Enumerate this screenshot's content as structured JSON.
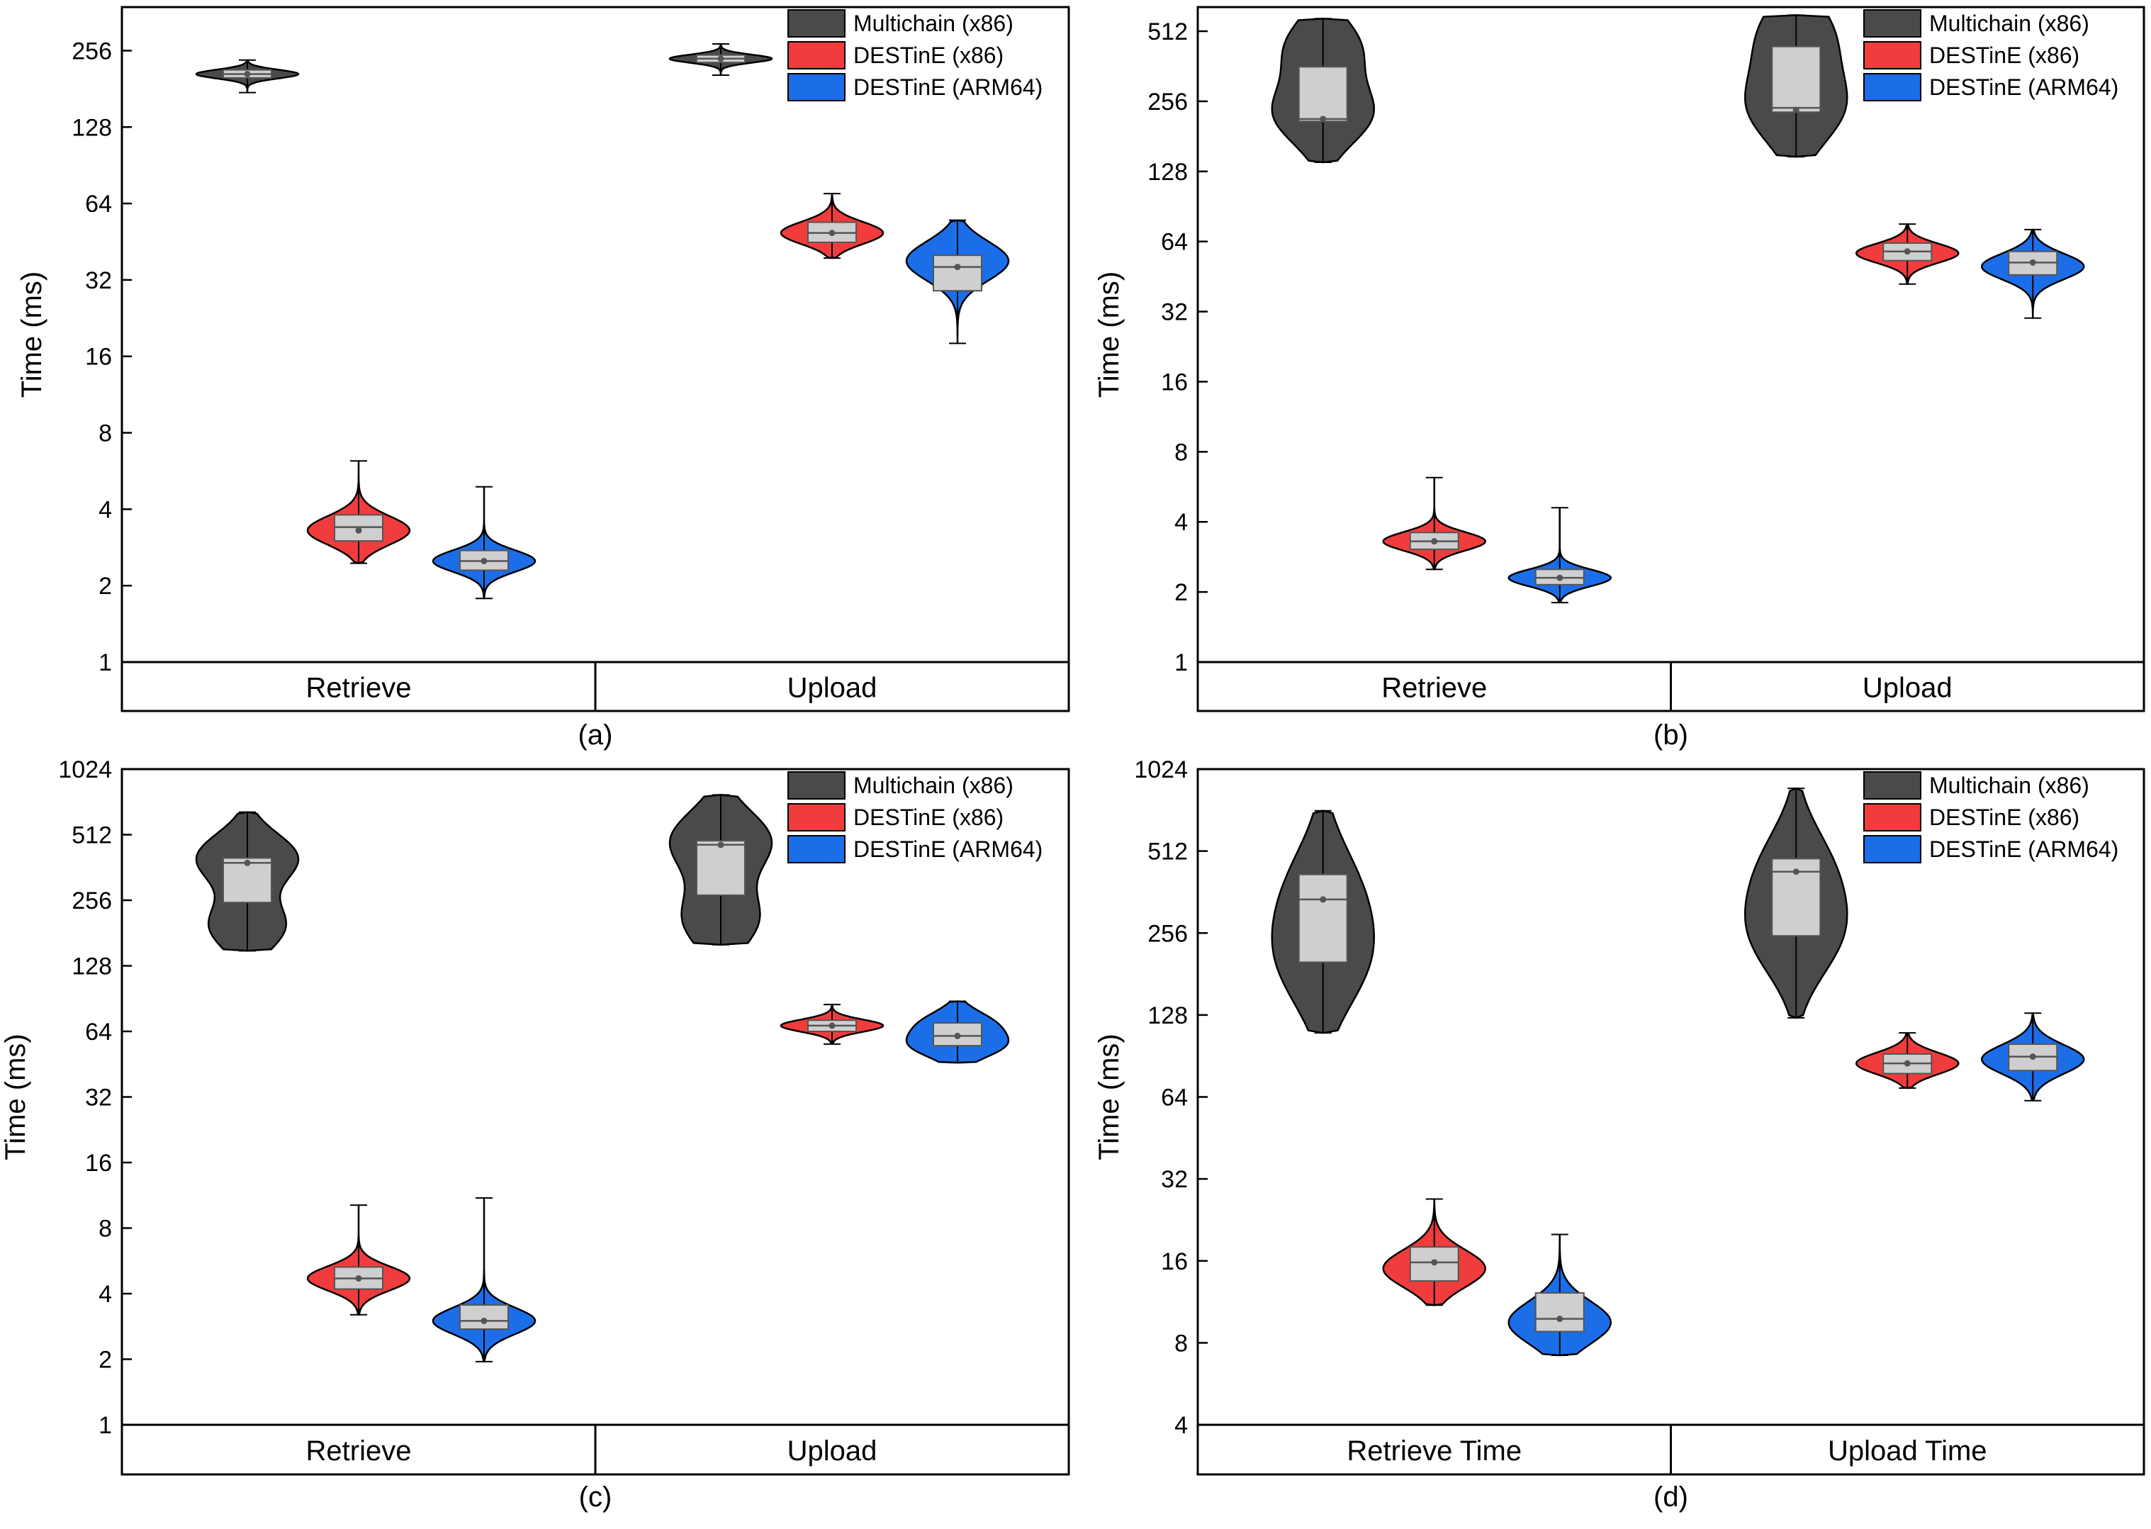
{
  "y_axis_label": "Time (ms)",
  "legend": [
    {
      "name": "Multichain (x86)",
      "color": "#4a4a4a"
    },
    {
      "name": "DESTinE (x86)",
      "color": "#f03c3c"
    },
    {
      "name": "DESTinE (ARM64)",
      "color": "#1c6ee8"
    }
  ],
  "box_color": "#cfcfcf",
  "chart_data": [
    {
      "type": "violin",
      "panel_label": "(a)",
      "ylabel": "Time (ms)",
      "yscale": "log2",
      "ylim": [
        1,
        380
      ],
      "yticks": [
        1,
        2,
        4,
        8,
        16,
        32,
        64,
        128,
        256
      ],
      "categories": [
        "Retrieve",
        "Upload"
      ],
      "series": [
        {
          "name": "Multichain (x86)",
          "groups": [
            {
              "category": "Retrieve",
              "min": 175,
              "max": 235,
              "q1": 200,
              "median": 207,
              "q3": 215,
              "mean": 207,
              "mode": 207
            },
            {
              "category": "Upload",
              "min": 205,
              "max": 272,
              "q1": 230,
              "median": 238,
              "q3": 246,
              "mean": 238,
              "mode": 238
            }
          ]
        },
        {
          "name": "DESTinE (x86)",
          "groups": [
            {
              "category": "Retrieve",
              "min": 2.45,
              "max": 6.2,
              "q1": 3.0,
              "median": 3.4,
              "q3": 3.8,
              "mean": 3.3,
              "mode": 3.3
            },
            {
              "category": "Upload",
              "min": 39,
              "max": 70,
              "q1": 45,
              "median": 49,
              "q3": 54,
              "mean": 49,
              "mode": 49
            }
          ]
        },
        {
          "name": "DESTinE (ARM64)",
          "groups": [
            {
              "category": "Retrieve",
              "min": 1.78,
              "max": 4.9,
              "q1": 2.3,
              "median": 2.5,
              "q3": 2.75,
              "mean": 2.5,
              "mode": 2.5
            },
            {
              "category": "Upload",
              "min": 18,
              "max": 55,
              "q1": 29,
              "median": 36,
              "q3": 40,
              "mean": 36,
              "mode": 38
            }
          ]
        }
      ]
    },
    {
      "type": "violin",
      "panel_label": "(b)",
      "ylabel": "Time (ms)",
      "yscale": "log2",
      "ylim": [
        1,
        650
      ],
      "yticks": [
        1,
        2,
        4,
        8,
        16,
        32,
        64,
        128,
        256,
        512
      ],
      "categories": [
        "Retrieve",
        "Upload"
      ],
      "series": [
        {
          "name": "Multichain (x86)",
          "groups": [
            {
              "category": "Retrieve",
              "min": 140,
              "max": 580,
              "q1": 210,
              "median": 215,
              "q3": 360,
              "mean": 215,
              "mode": 225,
              "mode2": 440
            },
            {
              "category": "Upload",
              "min": 148,
              "max": 600,
              "q1": 230,
              "median": 240,
              "q3": 440,
              "mean": 235,
              "mode": 240,
              "mode2": 500
            }
          ]
        },
        {
          "name": "DESTinE (x86)",
          "groups": [
            {
              "category": "Retrieve",
              "min": 2.5,
              "max": 6.2,
              "q1": 3.05,
              "median": 3.3,
              "q3": 3.6,
              "mean": 3.3,
              "mode": 3.3
            },
            {
              "category": "Upload",
              "min": 42,
              "max": 76,
              "q1": 53,
              "median": 58,
              "q3": 63,
              "mean": 58,
              "mode": 57
            }
          ]
        },
        {
          "name": "DESTinE (ARM64)",
          "groups": [
            {
              "category": "Retrieve",
              "min": 1.8,
              "max": 4.6,
              "q1": 2.15,
              "median": 2.3,
              "q3": 2.5,
              "mean": 2.3,
              "mode": 2.3
            },
            {
              "category": "Upload",
              "min": 30,
              "max": 72,
              "q1": 46,
              "median": 52,
              "q3": 58,
              "mean": 52,
              "mode": 50
            }
          ]
        }
      ]
    },
    {
      "type": "violin",
      "panel_label": "(c)",
      "ylabel": "Time (ms)",
      "yscale": "log2",
      "ylim": [
        1,
        1024
      ],
      "yticks": [
        1,
        2,
        4,
        8,
        16,
        32,
        64,
        128,
        256,
        512,
        1024
      ],
      "categories": [
        "Retrieve",
        "Upload"
      ],
      "series": [
        {
          "name": "Multichain (x86)",
          "groups": [
            {
              "category": "Retrieve",
              "min": 150,
              "max": 650,
              "q1": 250,
              "median": 380,
              "q3": 400,
              "mean": 380,
              "mode": 400,
              "mode2": 195
            },
            {
              "category": "Upload",
              "min": 160,
              "max": 780,
              "q1": 270,
              "median": 460,
              "q3": 480,
              "mean": 460,
              "mode": 480,
              "mode2": 210
            }
          ]
        },
        {
          "name": "DESTinE (x86)",
          "groups": [
            {
              "category": "Retrieve",
              "min": 3.2,
              "max": 10.2,
              "q1": 4.2,
              "median": 4.7,
              "q3": 5.3,
              "mean": 4.7,
              "mode": 4.7
            },
            {
              "category": "Upload",
              "min": 56,
              "max": 85,
              "q1": 64,
              "median": 68,
              "q3": 72,
              "mean": 68,
              "mode": 68
            }
          ]
        },
        {
          "name": "DESTinE (ARM64)",
          "groups": [
            {
              "category": "Retrieve",
              "min": 1.95,
              "max": 11,
              "q1": 2.75,
              "median": 3.0,
              "q3": 3.55,
              "mean": 3.0,
              "mode": 3.0
            },
            {
              "category": "Upload",
              "min": 46,
              "max": 88,
              "q1": 55,
              "median": 61,
              "q3": 70,
              "mean": 61,
              "mode": 55,
              "mode2": 70
            }
          ]
        }
      ]
    },
    {
      "type": "violin",
      "panel_label": "(d)",
      "ylabel": "Time (ms)",
      "yscale": "log2",
      "ylim": [
        4,
        1024
      ],
      "yticks": [
        4,
        8,
        16,
        32,
        64,
        128,
        256,
        512,
        1024
      ],
      "categories": [
        "Retrieve Time",
        "Upload Time"
      ],
      "series": [
        {
          "name": "Multichain (x86)",
          "groups": [
            {
              "category": "Retrieve Time",
              "min": 110,
              "max": 720,
              "q1": 200,
              "median": 340,
              "q3": 420,
              "mean": 340,
              "mode": 200,
              "mode2": 380
            },
            {
              "category": "Upload Time",
              "min": 125,
              "max": 870,
              "q1": 250,
              "median": 430,
              "q3": 480,
              "mean": 430,
              "mode": 250,
              "mode2": 450
            }
          ]
        },
        {
          "name": "DESTinE (x86)",
          "groups": [
            {
              "category": "Retrieve Time",
              "min": 11,
              "max": 27,
              "q1": 13.5,
              "median": 15.8,
              "q3": 18,
              "mean": 15.8,
              "mode": 15
            },
            {
              "category": "Upload Time",
              "min": 69,
              "max": 110,
              "q1": 78,
              "median": 85,
              "q3": 92,
              "mean": 85,
              "mode": 85
            }
          ]
        },
        {
          "name": "DESTinE (ARM64)",
          "groups": [
            {
              "category": "Retrieve Time",
              "min": 7.2,
              "max": 20,
              "q1": 8.8,
              "median": 9.8,
              "q3": 12.2,
              "mean": 9.8,
              "mode": 9.5
            },
            {
              "category": "Upload Time",
              "min": 62,
              "max": 130,
              "q1": 80,
              "median": 90,
              "q3": 100,
              "mean": 90,
              "mode": 88
            }
          ]
        }
      ]
    }
  ]
}
